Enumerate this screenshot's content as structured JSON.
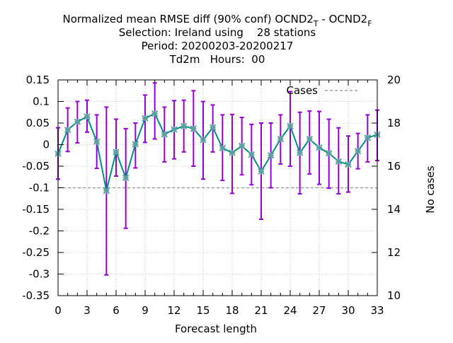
{
  "chart_data": {
    "type": "line",
    "title_lines": [
      "Normalized mean RMSE diff (90% conf) OCND2",
      "Selection: Ireland using    28 stations",
      "Period: 20200203-20200217",
      "Td2m   Hours:  00"
    ],
    "title_sub_T": "T",
    "title_mid": " - OCND2",
    "title_sub_F": "F",
    "xlabel": "Forecast length",
    "ylabel": "",
    "y2label": "No cases",
    "x_ticks": [
      "0",
      "3",
      "6",
      "9",
      "12",
      "15",
      "18",
      "21",
      "24",
      "27",
      "30",
      "33"
    ],
    "y_ticks": [
      "0.15",
      "0.1",
      "0.05",
      "0",
      "-0.05",
      "-0.1",
      "-0.15",
      "-0.2",
      "-0.25",
      "-0.3",
      "-0.35"
    ],
    "y2_ticks": [
      "20",
      "18",
      "16",
      "14",
      "12",
      "10"
    ],
    "xlim": [
      0,
      33
    ],
    "ylim": [
      -0.35,
      0.15
    ],
    "y2lim": [
      10,
      20
    ],
    "grid": true,
    "legend_position": "top-right",
    "series": [
      {
        "name": "",
        "color": "#008b8b",
        "marker_color": "#5f9ea0",
        "x": [
          0,
          1,
          2,
          3,
          4,
          5,
          6,
          7,
          8,
          9,
          10,
          11,
          12,
          13,
          14,
          15,
          16,
          17,
          18,
          19,
          20,
          21,
          22,
          23,
          24,
          25,
          26,
          27,
          28,
          29,
          30,
          31,
          32,
          33
        ],
        "y": [
          -0.021,
          0.034,
          0.053,
          0.065,
          0.007,
          -0.107,
          -0.017,
          -0.077,
          0.001,
          0.061,
          0.072,
          0.024,
          0.035,
          0.043,
          0.037,
          0.011,
          0.04,
          -0.008,
          -0.019,
          -0.003,
          -0.023,
          -0.062,
          -0.025,
          0.013,
          0.043,
          -0.019,
          0.013,
          -0.007,
          -0.02,
          -0.039,
          -0.046,
          -0.015,
          0.016,
          0.023
        ],
        "err_low": [
          -0.08,
          -0.016,
          0.004,
          0.029,
          -0.055,
          -0.302,
          -0.073,
          -0.194,
          -0.054,
          0.005,
          0.013,
          -0.04,
          -0.033,
          -0.017,
          -0.05,
          -0.08,
          -0.017,
          -0.083,
          -0.113,
          -0.07,
          -0.093,
          -0.173,
          -0.1,
          -0.045,
          -0.05,
          -0.114,
          -0.068,
          -0.092,
          -0.101,
          -0.114,
          -0.11,
          -0.056,
          -0.04,
          -0.037
        ],
        "err_high": [
          0.039,
          0.085,
          0.1,
          0.103,
          0.069,
          0.087,
          0.059,
          0.037,
          0.05,
          0.115,
          0.143,
          0.087,
          0.102,
          0.103,
          0.125,
          0.1,
          0.092,
          0.069,
          0.07,
          0.063,
          0.047,
          0.05,
          0.05,
          0.069,
          0.123,
          0.075,
          0.078,
          0.077,
          0.059,
          0.039,
          0.02,
          0.026,
          0.069,
          0.08
        ]
      }
    ],
    "error_bar_color": "#9400d3",
    "cases": {
      "name": "Cases",
      "color": "#a0a0a0",
      "x": [
        0,
        33
      ],
      "y": [
        15,
        15
      ]
    }
  }
}
